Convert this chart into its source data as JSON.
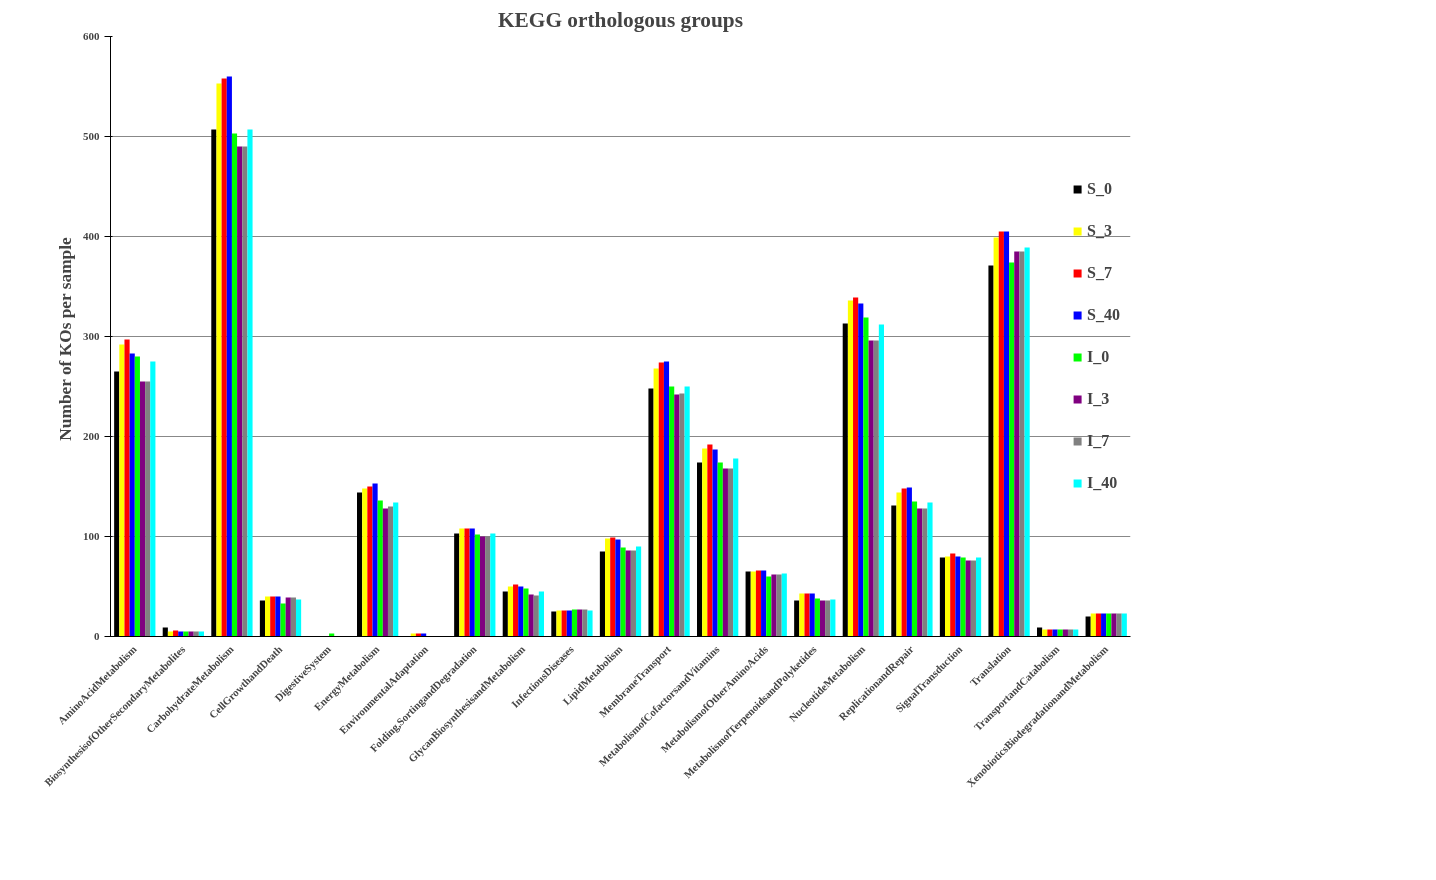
{
  "chart_data": {
    "type": "bar",
    "title": "KEGG orthologous groups",
    "ylabel": "Number  of KOs per sample",
    "categories": [
      "AminoAcidMetabolism",
      "BiosynthesisofOtherSecondaryMetabolites",
      "CarbohydrateMetabolism",
      "CellGrowthandDeath",
      "DigestiveSystem",
      "EnergyMetabolism",
      "EnvironmentalAdaptation",
      "Folding,SortingandDegradation",
      "GlycanBiosynthesisandMetabolism",
      "InfectiousDiseases",
      "LipidMetabolism",
      "MembraneTransport",
      "MetabolismofCofactorsandVitamins",
      "MetabolismofOtherAminoAcids",
      "MetabolismofTerpenoidsandPolyketides",
      "NucleotideMetabolism",
      "ReplicationandRepair",
      "SignalTransduction",
      "Translation",
      "TransportandCatabolism",
      "XenobioticsBiodegradationandMetabolism"
    ],
    "series": [
      {
        "name": "S_0",
        "color": "#000000",
        "values": [
          265,
          9,
          507,
          36,
          0,
          144,
          0,
          103,
          45,
          25,
          85,
          248,
          174,
          65,
          36,
          313,
          131,
          79,
          371,
          9,
          20
        ]
      },
      {
        "name": "S_3",
        "color": "#ffff00",
        "values": [
          292,
          5,
          553,
          40,
          0,
          148,
          3,
          108,
          50,
          26,
          98,
          268,
          188,
          65,
          43,
          336,
          144,
          80,
          399,
          7,
          23
        ]
      },
      {
        "name": "S_7",
        "color": "#ff0000",
        "values": [
          297,
          6,
          558,
          40,
          0,
          150,
          3,
          108,
          52,
          26,
          99,
          274,
          192,
          66,
          43,
          339,
          148,
          83,
          405,
          7,
          23
        ]
      },
      {
        "name": "S_40",
        "color": "#0000ff",
        "values": [
          283,
          5,
          560,
          40,
          0,
          153,
          3,
          108,
          50,
          26,
          97,
          275,
          187,
          66,
          43,
          333,
          149,
          80,
          405,
          7,
          23
        ]
      },
      {
        "name": "I_0",
        "color": "#00ff00",
        "values": [
          280,
          5,
          503,
          33,
          3,
          136,
          0,
          102,
          48,
          27,
          89,
          250,
          174,
          60,
          38,
          319,
          135,
          79,
          374,
          7,
          23
        ]
      },
      {
        "name": "I_3",
        "color": "#800080",
        "values": [
          255,
          5,
          490,
          39,
          0,
          128,
          0,
          100,
          42,
          27,
          86,
          242,
          168,
          62,
          36,
          296,
          128,
          76,
          385,
          7,
          23
        ]
      },
      {
        "name": "I_7",
        "color": "#808080",
        "values": [
          255,
          5,
          490,
          39,
          0,
          130,
          0,
          100,
          41,
          27,
          86,
          243,
          168,
          62,
          36,
          296,
          128,
          76,
          385,
          7,
          23
        ]
      },
      {
        "name": "I_40",
        "color": "#00ffff",
        "values": [
          275,
          5,
          507,
          37,
          0,
          134,
          0,
          103,
          45,
          26,
          90,
          250,
          178,
          63,
          37,
          312,
          134,
          79,
          389,
          7,
          23
        ]
      }
    ],
    "ylim": [
      0,
      600
    ],
    "yticks": [
      0,
      100,
      200,
      300,
      400,
      500,
      600
    ],
    "grid": "y",
    "legend": "right"
  }
}
